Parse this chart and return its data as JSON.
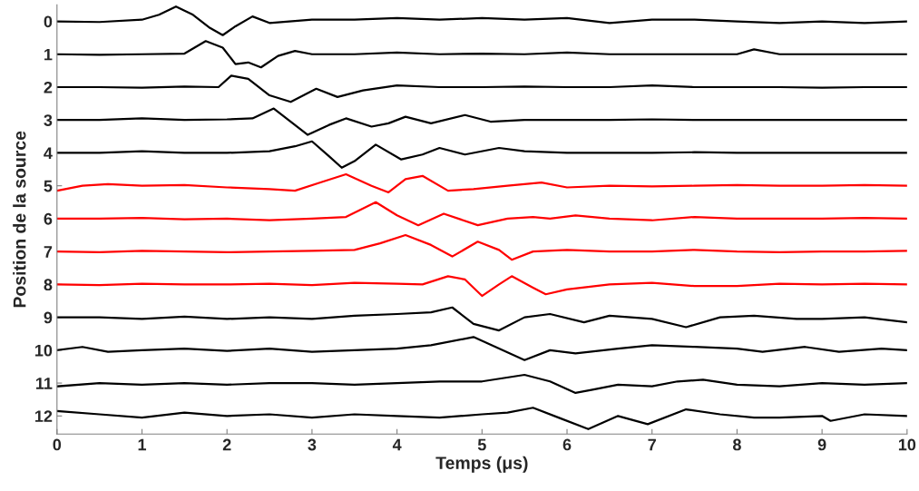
{
  "chart_data": {
    "type": "line",
    "xlabel": "Temps (μs)",
    "ylabel": "Position de la source",
    "xlim": [
      0,
      10
    ],
    "xticks": [
      0,
      1,
      2,
      3,
      4,
      5,
      6,
      7,
      8,
      9,
      10
    ],
    "ylim": [
      12.55,
      -0.5
    ],
    "yticks": [
      0,
      1,
      2,
      3,
      4,
      5,
      6,
      7,
      8,
      9,
      10,
      11,
      12
    ],
    "grid": false,
    "marker": "none",
    "line_style": "solid",
    "series": [
      {
        "color": "#000000",
        "x": [
          0,
          0.5,
          1,
          1.2,
          1.4,
          1.6,
          1.8,
          1.95,
          2.1,
          2.3,
          2.5,
          3,
          3.5,
          4,
          4.5,
          5,
          5.5,
          6,
          6.5,
          7,
          7.5,
          8,
          8.5,
          9,
          9.5,
          10
        ],
        "values": [
          0,
          0.02,
          -0.05,
          -0.2,
          -0.45,
          -0.2,
          0.2,
          0.42,
          0.15,
          -0.15,
          0.05,
          -0.05,
          -0.05,
          -0.1,
          -0.05,
          -0.1,
          -0.05,
          -0.1,
          0.05,
          -0.05,
          -0.05,
          0,
          0.05,
          0,
          0.05,
          0
        ]
      },
      {
        "color": "#000000",
        "x": [
          0,
          0.5,
          1,
          1.5,
          1.75,
          1.95,
          2.1,
          2.25,
          2.4,
          2.6,
          2.8,
          3,
          3.5,
          4,
          4.5,
          5,
          5.5,
          6,
          6.5,
          7,
          7.5,
          8,
          8.2,
          8.5,
          9,
          9.5,
          10
        ],
        "values": [
          1,
          1.02,
          1,
          0.98,
          0.6,
          0.8,
          1.3,
          1.25,
          1.4,
          1.05,
          0.9,
          1,
          1,
          0.95,
          1,
          0.98,
          1,
          0.95,
          1,
          1,
          1,
          1,
          0.85,
          1,
          1,
          1,
          1
        ]
      },
      {
        "color": "#000000",
        "x": [
          0,
          0.5,
          1,
          1.5,
          1.9,
          2.05,
          2.25,
          2.5,
          2.75,
          3.05,
          3.3,
          3.6,
          4,
          4.5,
          5,
          5.5,
          6,
          6.5,
          7,
          7.5,
          8,
          8.5,
          9,
          9.5,
          10
        ],
        "values": [
          2,
          2,
          2.02,
          1.98,
          2,
          1.65,
          1.75,
          2.25,
          2.45,
          2.05,
          2.3,
          2.1,
          1.95,
          2,
          2,
          1.98,
          2,
          2,
          1.95,
          2,
          2,
          2,
          2.02,
          2,
          2
        ]
      },
      {
        "color": "#000000",
        "x": [
          0,
          0.5,
          1,
          1.5,
          2,
          2.3,
          2.55,
          2.75,
          2.95,
          3.2,
          3.4,
          3.7,
          3.9,
          4.1,
          4.4,
          4.8,
          5.1,
          5.5,
          6,
          6.5,
          7,
          7.5,
          8,
          8.5,
          9,
          9.5,
          10
        ],
        "values": [
          3,
          3,
          2.95,
          3,
          2.98,
          2.95,
          2.65,
          3.05,
          3.45,
          3.15,
          2.95,
          3.2,
          3.1,
          2.9,
          3.1,
          2.85,
          3.05,
          3,
          3,
          3,
          2.98,
          3,
          3,
          3,
          3,
          3,
          3
        ]
      },
      {
        "color": "#000000",
        "x": [
          0,
          0.5,
          1,
          1.5,
          2,
          2.5,
          2.8,
          3.0,
          3.2,
          3.35,
          3.5,
          3.75,
          4.05,
          4.3,
          4.5,
          4.8,
          5.2,
          5.5,
          6,
          6.5,
          7,
          7.5,
          8,
          8.5,
          9,
          9.5,
          10
        ],
        "values": [
          4,
          4,
          3.95,
          4,
          4,
          3.95,
          3.8,
          3.65,
          4.1,
          4.45,
          4.25,
          3.75,
          4.2,
          4.05,
          3.85,
          4.05,
          3.85,
          3.95,
          4,
          4,
          4,
          3.98,
          4,
          4,
          4,
          4,
          4
        ]
      },
      {
        "color": "#ff0000",
        "x": [
          0,
          0.3,
          0.6,
          1,
          1.5,
          2,
          2.5,
          2.8,
          3.1,
          3.4,
          3.7,
          3.9,
          4.1,
          4.3,
          4.6,
          4.9,
          5.3,
          5.7,
          6,
          6.5,
          7,
          7.5,
          8,
          8.5,
          9,
          9.5,
          10
        ],
        "values": [
          5.15,
          5,
          4.95,
          5,
          4.98,
          5.05,
          5.1,
          5.15,
          4.9,
          4.65,
          5.0,
          5.2,
          4.8,
          4.7,
          5.15,
          5.1,
          5.0,
          4.9,
          5.05,
          5.0,
          5.02,
          5,
          4.98,
          5,
          5,
          4.98,
          5
        ]
      },
      {
        "color": "#ff0000",
        "x": [
          0,
          0.5,
          1,
          1.5,
          2,
          2.5,
          3,
          3.4,
          3.75,
          4.0,
          4.25,
          4.55,
          4.95,
          5.3,
          5.6,
          5.8,
          6.1,
          6.5,
          7,
          7.5,
          8,
          8.5,
          9,
          9.5,
          10
        ],
        "values": [
          6,
          6,
          5.98,
          6.02,
          6,
          6.05,
          6,
          5.95,
          5.5,
          5.9,
          6.2,
          5.85,
          6.2,
          6.0,
          5.95,
          6.0,
          5.9,
          6.0,
          6.05,
          5.95,
          6,
          6,
          6,
          5.98,
          6
        ]
      },
      {
        "color": "#ff0000",
        "x": [
          0,
          0.5,
          1,
          1.5,
          2,
          2.5,
          3,
          3.5,
          3.8,
          4.1,
          4.4,
          4.65,
          4.95,
          5.2,
          5.35,
          5.6,
          6,
          6.5,
          7,
          7.5,
          8,
          8.5,
          9,
          9.5,
          10
        ],
        "values": [
          7,
          7.02,
          6.98,
          7,
          7.02,
          7,
          6.98,
          6.95,
          6.75,
          6.5,
          6.8,
          7.15,
          6.7,
          6.95,
          7.25,
          7.0,
          6.95,
          7,
          7.0,
          6.95,
          7,
          7.02,
          7,
          7,
          6.98
        ]
      },
      {
        "color": "#ff0000",
        "x": [
          0,
          0.5,
          1,
          1.5,
          2,
          2.5,
          3,
          3.5,
          4,
          4.3,
          4.6,
          4.8,
          5.0,
          5.2,
          5.35,
          5.6,
          5.75,
          6,
          6.5,
          7,
          7.5,
          8,
          8.5,
          9,
          9.5,
          10
        ],
        "values": [
          8,
          8.02,
          7.98,
          8,
          8,
          7.98,
          8.02,
          7.95,
          7.98,
          8.0,
          7.75,
          7.85,
          8.35,
          8.0,
          7.75,
          8.1,
          8.3,
          8.15,
          8.0,
          7.95,
          8.05,
          8.05,
          7.98,
          8,
          7.98,
          8
        ]
      },
      {
        "color": "#000000",
        "x": [
          0,
          0.5,
          1,
          1.5,
          2,
          2.5,
          3,
          3.5,
          4,
          4.4,
          4.65,
          4.9,
          5.2,
          5.5,
          5.8,
          6.2,
          6.5,
          7,
          7.4,
          7.8,
          8.2,
          8.7,
          9,
          9.5,
          10
        ],
        "values": [
          9,
          9,
          9.05,
          8.98,
          9.05,
          9,
          9.05,
          8.95,
          8.9,
          8.85,
          8.7,
          9.2,
          9.4,
          9.0,
          8.9,
          9.15,
          8.95,
          9.05,
          9.3,
          9.0,
          8.95,
          9.05,
          9.05,
          9,
          9.15
        ]
      },
      {
        "color": "#000000",
        "x": [
          0,
          0.3,
          0.6,
          1,
          1.5,
          2,
          2.5,
          3,
          3.5,
          4,
          4.4,
          4.9,
          5.2,
          5.5,
          5.8,
          6.1,
          6.6,
          7,
          7.5,
          8,
          8.3,
          8.8,
          9.2,
          9.7,
          10
        ],
        "values": [
          10,
          9.9,
          10.05,
          10,
          9.95,
          10.02,
          9.95,
          10.05,
          10,
          9.95,
          9.85,
          9.6,
          9.95,
          10.3,
          10.0,
          10.1,
          9.95,
          9.85,
          9.9,
          9.95,
          10.05,
          9.9,
          10.05,
          9.95,
          10
        ]
      },
      {
        "color": "#000000",
        "x": [
          0,
          0.5,
          1,
          1.5,
          2,
          2.5,
          3,
          3.5,
          4,
          4.5,
          5,
          5.5,
          5.8,
          6.1,
          6.3,
          6.6,
          7,
          7.3,
          7.6,
          8,
          8.5,
          9,
          9.5,
          10
        ],
        "values": [
          11.1,
          11,
          11.05,
          11,
          11.05,
          11,
          11,
          11.05,
          11,
          10.95,
          10.95,
          10.75,
          10.95,
          11.3,
          11.2,
          11.05,
          11.1,
          10.95,
          10.9,
          11.05,
          11.1,
          11,
          11.05,
          11
        ]
      },
      {
        "color": "#000000",
        "x": [
          0,
          0.5,
          1,
          1.5,
          2,
          2.5,
          3,
          3.5,
          4,
          4.5,
          5,
          5.3,
          5.6,
          5.9,
          6.25,
          6.6,
          6.95,
          7.4,
          7.8,
          8.2,
          8.5,
          9,
          9.1,
          9.5,
          10
        ],
        "values": [
          11.85,
          11.95,
          12.05,
          11.9,
          12,
          11.95,
          12.05,
          11.95,
          12,
          12.05,
          11.95,
          11.9,
          11.75,
          12.05,
          12.4,
          12,
          12.25,
          11.8,
          11.95,
          12.05,
          12.05,
          12,
          12.15,
          11.95,
          12
        ]
      }
    ]
  }
}
